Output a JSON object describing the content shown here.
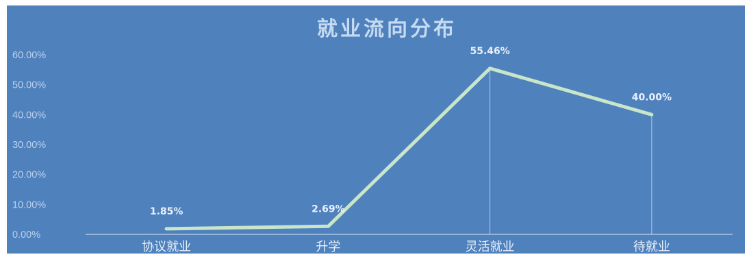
{
  "chart_data": {
    "type": "line",
    "title": "就业流向分布",
    "categories": [
      "协议就业",
      "升学",
      "灵活就业",
      "待就业"
    ],
    "values": [
      1.85,
      2.69,
      55.46,
      40.0
    ],
    "data_labels": [
      "1.85%",
      "2.69%",
      "55.46%",
      "40.00%"
    ],
    "y_ticks": [
      "0.00%",
      "10.00%",
      "20.00%",
      "30.00%",
      "40.00%",
      "50.00%",
      "60.00%"
    ],
    "ylim": [
      0,
      60
    ],
    "xlabel": "",
    "ylabel": "",
    "grid": false,
    "legend": "none",
    "colors": {
      "background": "#4f81bd",
      "line": "#c9e6c9",
      "drop_lines": "#dbe6f3",
      "axis": "#dbe6f3"
    }
  }
}
